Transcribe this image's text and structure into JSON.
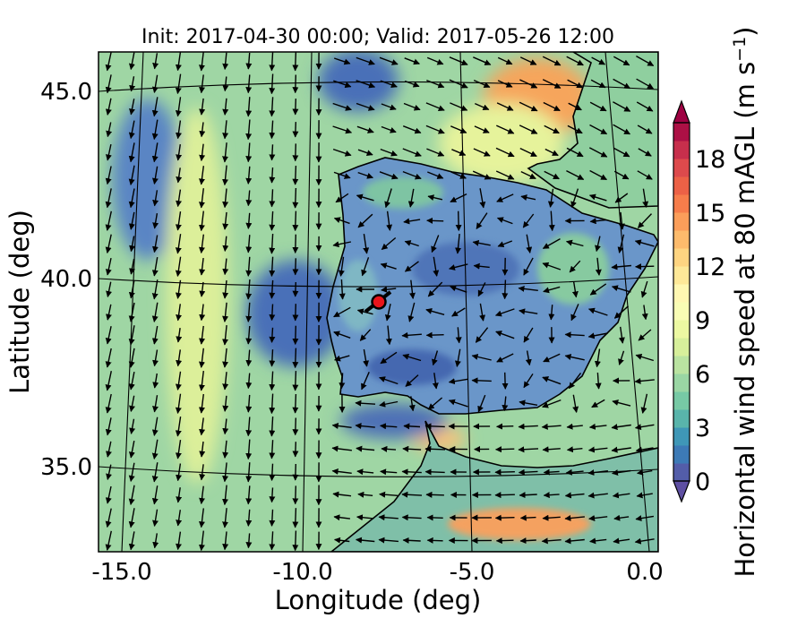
{
  "title": "Init: 2017-04-30 00:00; Valid: 2017-05-26 12:00",
  "x_axis": {
    "label": "Longitude (deg)",
    "ticks": [
      -15.0,
      -10.0,
      -5.0,
      0.0
    ],
    "tick_labels": [
      "-15.0",
      "-10.0",
      "-5.0",
      "0.0"
    ],
    "range": [
      -15.8,
      0.2
    ]
  },
  "y_axis": {
    "label": "Latitude (deg)",
    "ticks": [
      35.0,
      40.0,
      45.0
    ],
    "tick_labels": [
      "35.0",
      "40.0",
      "45.0"
    ],
    "range": [
      32.6,
      46.2
    ]
  },
  "colorbar": {
    "label_main": "Horizontal wind speed at 80 mAGL (m s",
    "label_exp": "−1",
    "label_close": ")",
    "ticks": [
      0,
      3,
      6,
      9,
      12,
      15,
      18
    ],
    "tick_labels": [
      "0",
      "3",
      "6",
      "9",
      "12",
      "15",
      "18"
    ],
    "range": [
      0,
      20
    ],
    "extend": "both",
    "colormap": "Spectral_r",
    "colors": [
      "#5e4fa2",
      "#3288bd",
      "#66c2a5",
      "#abdda4",
      "#e6f598",
      "#ffffbf",
      "#fee08b",
      "#fdae61",
      "#f46d43",
      "#d53e4f",
      "#9e0142"
    ]
  },
  "marker": {
    "lon": -7.6,
    "lat": 39.3,
    "color": "#e8141b"
  },
  "map_colors": {
    "ocean_background": "#9fd6a4",
    "coastline": "#000000",
    "wind_arrows": "#000000"
  }
}
